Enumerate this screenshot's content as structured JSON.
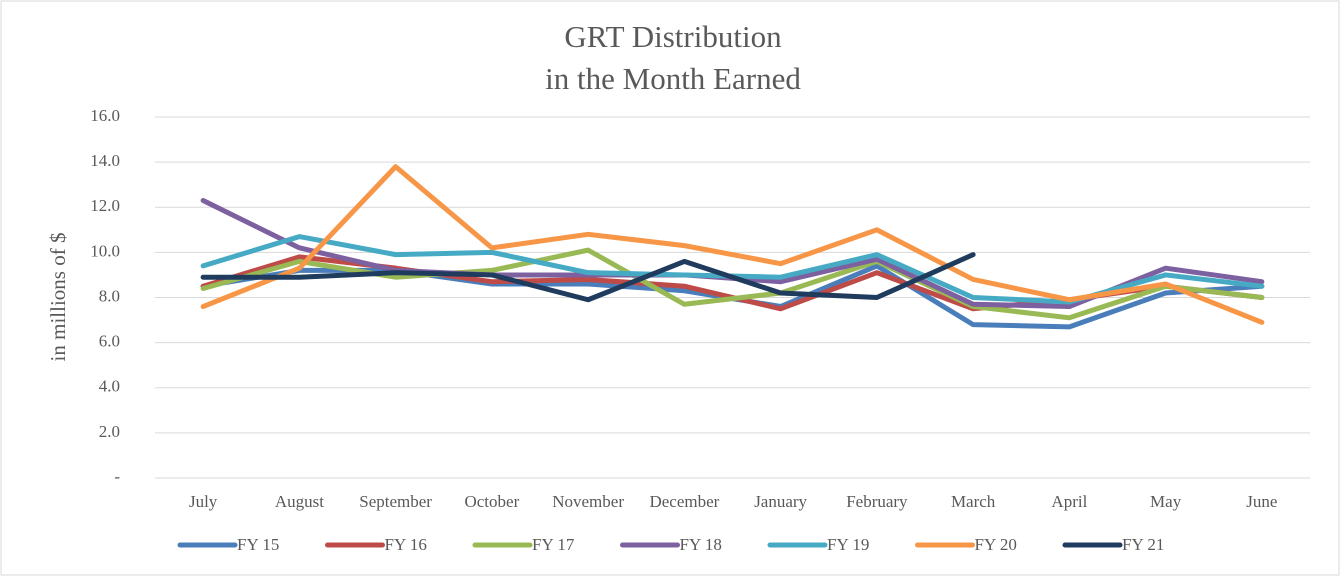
{
  "chart_data": {
    "type": "line",
    "title": "GRT Distribution",
    "subtitle": "in the Month Earned",
    "y_label": "in millions of $",
    "categories": [
      "July",
      "August",
      "September",
      "October",
      "November",
      "December",
      "January",
      "February",
      "March",
      "April",
      "May",
      "June"
    ],
    "series": [
      {
        "name": "FY 15",
        "color": "#4a7ebb",
        "values": [
          8.5,
          9.2,
          9.2,
          8.6,
          8.6,
          8.3,
          7.6,
          9.4,
          6.8,
          6.7,
          8.2,
          8.5
        ]
      },
      {
        "name": "FY 16",
        "color": "#be4b48",
        "values": [
          8.5,
          9.8,
          9.3,
          8.7,
          8.8,
          8.5,
          7.5,
          9.1,
          7.5,
          7.9,
          8.5,
          8.0
        ]
      },
      {
        "name": "FY 17",
        "color": "#98b954",
        "values": [
          8.4,
          9.6,
          8.9,
          9.2,
          10.1,
          7.7,
          8.2,
          9.6,
          7.6,
          7.1,
          8.5,
          8.0
        ]
      },
      {
        "name": "FY 18",
        "color": "#7d60a0",
        "values": [
          12.3,
          10.2,
          9.2,
          9.0,
          9.0,
          9.0,
          8.7,
          9.7,
          7.7,
          7.6,
          9.3,
          8.7
        ]
      },
      {
        "name": "FY 19",
        "color": "#46aac5",
        "values": [
          9.4,
          10.7,
          9.9,
          10.0,
          9.1,
          9.0,
          8.9,
          9.9,
          8.0,
          7.8,
          9.0,
          8.5
        ]
      },
      {
        "name": "FY 20",
        "color": "#f79646",
        "values": [
          7.6,
          9.3,
          13.8,
          10.2,
          10.8,
          10.3,
          9.5,
          11.0,
          8.8,
          7.9,
          8.6,
          6.9
        ]
      },
      {
        "name": "FY 21",
        "color": "#1f3b5e",
        "values": [
          8.9,
          8.9,
          9.1,
          9.0,
          7.9,
          9.6,
          8.2,
          8.0,
          9.9,
          null,
          null,
          null
        ]
      }
    ],
    "ylim": [
      0,
      16
    ],
    "yticks": [
      {
        "value": 0,
        "label": "-"
      },
      {
        "value": 2,
        "label": "2.0"
      },
      {
        "value": 4,
        "label": "4.0"
      },
      {
        "value": 6,
        "label": "6.0"
      },
      {
        "value": 8,
        "label": "8.0"
      },
      {
        "value": 10,
        "label": "10.0"
      },
      {
        "value": 12,
        "label": "12.0"
      },
      {
        "value": 14,
        "label": "14.0"
      },
      {
        "value": 16,
        "label": "16.0"
      }
    ],
    "grid": true,
    "legend": "bottom"
  }
}
